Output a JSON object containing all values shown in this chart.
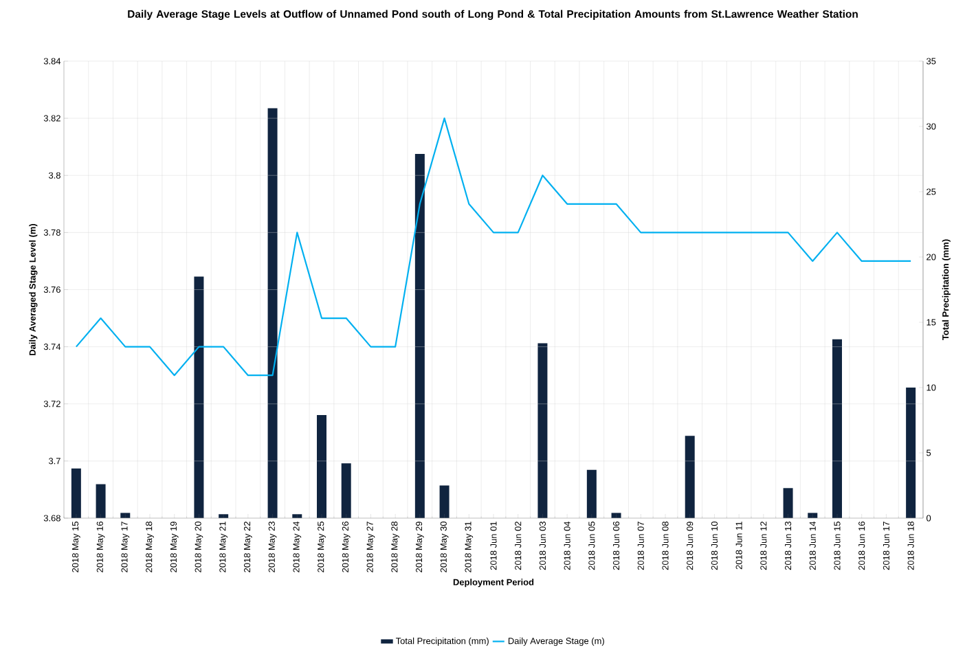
{
  "chart_data": {
    "type": "bar",
    "title": "Daily Average Stage Levels at Outflow of  Unnamed Pond south of Long Pond & Total Precipitation Amounts from St.Lawrence Weather Station",
    "xlabel": "Deployment Period",
    "ylabel": "Daily  Averaged Stage  Level (m)",
    "y2label": "Total Precipitation (mm)",
    "categories": [
      "2018 May 15",
      "2018 May 16",
      "2018 May 17",
      "2018 May 18",
      "2018 May 19",
      "2018 May 20",
      "2018 May 21",
      "2018 May 22",
      "2018 May 23",
      "2018 May 24",
      "2018 May 25",
      "2018 May 26",
      "2018 May 27",
      "2018 May 28",
      "2018 May 29",
      "2018 May 30",
      "2018 May 31",
      "2018 Jun 01",
      "2018 Jun 02",
      "2018 Jun 03",
      "2018 Jun 04",
      "2018 Jun 05",
      "2018 Jun 06",
      "2018 Jun 07",
      "2018 Jun 08",
      "2018 Jun 09",
      "2018 Jun 10",
      "2018 Jun 11",
      "2018 Jun 12",
      "2018 Jun 13",
      "2018 Jun 14",
      "2018 Jun 15",
      "2018 Jun 16",
      "2018 Jun 17",
      "2018 Jun 18"
    ],
    "series": [
      {
        "name": "Total Precipitation (mm)",
        "axis": "y2",
        "color": "#10243f",
        "values": [
          3.8,
          2.6,
          0.4,
          0,
          0,
          18.5,
          0.3,
          0,
          31.4,
          0.3,
          7.9,
          4.2,
          0,
          0,
          27.9,
          2.5,
          0,
          0,
          0,
          13.4,
          0,
          3.7,
          0.4,
          0,
          0,
          6.3,
          0,
          0,
          0,
          2.3,
          0.4,
          13.7,
          0,
          0,
          10.0
        ]
      },
      {
        "name": "Daily Average Stage (m)",
        "type": "line",
        "color": "#00b0f0",
        "values": [
          3.74,
          3.75,
          3.74,
          3.74,
          3.73,
          3.74,
          3.74,
          3.73,
          3.73,
          3.78,
          3.75,
          3.75,
          3.74,
          3.74,
          3.79,
          3.82,
          3.79,
          3.78,
          3.78,
          3.8,
          3.79,
          3.79,
          3.79,
          3.78,
          3.78,
          3.78,
          3.78,
          3.78,
          3.78,
          3.78,
          3.77,
          3.78,
          3.77,
          3.77,
          3.77
        ]
      }
    ],
    "ylim": [
      3.68,
      3.84
    ],
    "yticks": [
      3.68,
      3.7,
      3.72,
      3.74,
      3.76,
      3.78,
      3.8,
      3.82,
      3.84
    ],
    "y2lim": [
      0,
      35
    ],
    "y2ticks": [
      0,
      5,
      10,
      15,
      20,
      25,
      30,
      35
    ],
    "grid": true,
    "legend": "bottom",
    "marker": "none",
    "line_style": "solid"
  }
}
